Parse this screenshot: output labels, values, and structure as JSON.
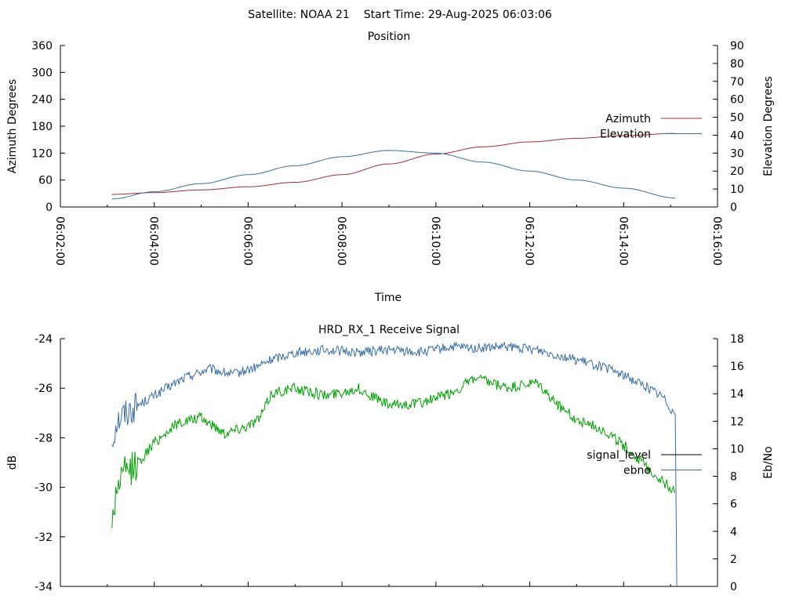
{
  "header": {
    "satellite_label": "Satellite: NOAA 21",
    "start_time_label": "Start Time: 29-Aug-2025 06:03:06"
  },
  "chart_data": [
    {
      "type": "line",
      "title": "Position",
      "xlabel": "Time",
      "ylabel": "Azimuth Degrees",
      "y2label": "Elevation Degrees",
      "xlim": [
        "06:02:00",
        "06:16:00"
      ],
      "ylim": [
        0,
        360
      ],
      "y2lim": [
        0,
        90
      ],
      "x_ticks": [
        "06:02:00",
        "06:04:00",
        "06:06:00",
        "06:08:00",
        "06:10:00",
        "06:12:00",
        "06:14:00",
        "06:16:00"
      ],
      "y_ticks": [
        0,
        60,
        120,
        180,
        240,
        300,
        360
      ],
      "y2_ticks": [
        0,
        10,
        20,
        30,
        40,
        50,
        60,
        70,
        80,
        90
      ],
      "grid": false,
      "legend": "right",
      "series": [
        {
          "name": "Azimuth",
          "axis": "y",
          "color": "#a0303c",
          "x": [
            "06:03:06",
            "06:04:00",
            "06:05:00",
            "06:06:00",
            "06:07:00",
            "06:08:00",
            "06:09:00",
            "06:10:00",
            "06:11:00",
            "06:12:00",
            "06:13:00",
            "06:14:00",
            "06:15:06"
          ],
          "values": [
            28,
            32,
            38,
            45,
            55,
            72,
            96,
            118,
            134,
            145,
            153,
            159,
            164
          ]
        },
        {
          "name": "Elevation",
          "axis": "y2",
          "color": "#3a6ea5",
          "x": [
            "06:03:06",
            "06:04:00",
            "06:05:00",
            "06:06:00",
            "06:07:00",
            "06:08:00",
            "06:09:00",
            "06:10:00",
            "06:11:00",
            "06:12:00",
            "06:13:00",
            "06:14:00",
            "06:15:06"
          ],
          "values": [
            4.5,
            8.5,
            13,
            18,
            23,
            28,
            31.5,
            30,
            25,
            20,
            15,
            10.5,
            5
          ]
        }
      ]
    },
    {
      "type": "line",
      "title": "HRD_RX_1 Receive Signal",
      "xlabel": "",
      "ylabel": "dB",
      "y2label": "Eb/No",
      "xlim": [
        "06:02:00",
        "06:16:00"
      ],
      "ylim": [
        -34,
        -24
      ],
      "y2lim": [
        0,
        18
      ],
      "y_ticks": [
        -34,
        -32,
        -30,
        -28,
        -26,
        -24
      ],
      "y2_ticks": [
        0,
        2,
        4,
        6,
        8,
        10,
        12,
        14,
        16,
        18
      ],
      "grid": false,
      "legend": "right",
      "legend_entries": [
        {
          "name": "signal_level",
          "color": "#000000"
        },
        {
          "name": "ebno",
          "color": "#3a6ea5"
        }
      ],
      "series": [
        {
          "name": "ebno",
          "axis": "y2",
          "color": "#3a6ea5",
          "x": [
            "06:03:06",
            "06:03:12",
            "06:03:20",
            "06:03:40",
            "06:04:10",
            "06:04:40",
            "06:05:10",
            "06:05:40",
            "06:06:10",
            "06:06:30",
            "06:07:00",
            "06:07:40",
            "06:08:20",
            "06:09:00",
            "06:09:40",
            "06:10:20",
            "06:10:50",
            "06:11:30",
            "06:12:10",
            "06:12:50",
            "06:13:30",
            "06:13:50",
            "06:14:20",
            "06:14:50",
            "06:15:06",
            "06:15:08"
          ],
          "values": [
            10.5,
            12.0,
            12.5,
            13.2,
            14.2,
            15.2,
            15.8,
            15.4,
            15.9,
            16.5,
            17.0,
            17.2,
            17.0,
            17.2,
            17.0,
            17.4,
            17.3,
            17.4,
            17.2,
            16.6,
            16.0,
            15.6,
            14.8,
            13.8,
            12.5,
            0
          ]
        },
        {
          "name": "",
          "axis": "y",
          "color": "#00a000",
          "x": [
            "06:03:06",
            "06:03:12",
            "06:03:20",
            "06:03:40",
            "06:04:00",
            "06:04:30",
            "06:05:00",
            "06:05:30",
            "06:06:00",
            "06:06:15",
            "06:06:30",
            "06:07:00",
            "06:07:40",
            "06:08:20",
            "06:09:00",
            "06:09:40",
            "06:10:20",
            "06:10:50",
            "06:11:30",
            "06:12:10",
            "06:12:30",
            "06:13:00",
            "06:13:30",
            "06:14:00",
            "06:14:30",
            "06:15:06"
          ],
          "values": [
            -31.5,
            -30.0,
            -29.5,
            -29.0,
            -28.2,
            -27.4,
            -27.2,
            -27.8,
            -27.5,
            -27.2,
            -26.2,
            -26.0,
            -26.3,
            -26.0,
            -26.7,
            -26.6,
            -26.2,
            -25.6,
            -26.0,
            -25.8,
            -26.5,
            -27.3,
            -27.6,
            -28.3,
            -29.2,
            -30.2
          ]
        }
      ]
    }
  ]
}
